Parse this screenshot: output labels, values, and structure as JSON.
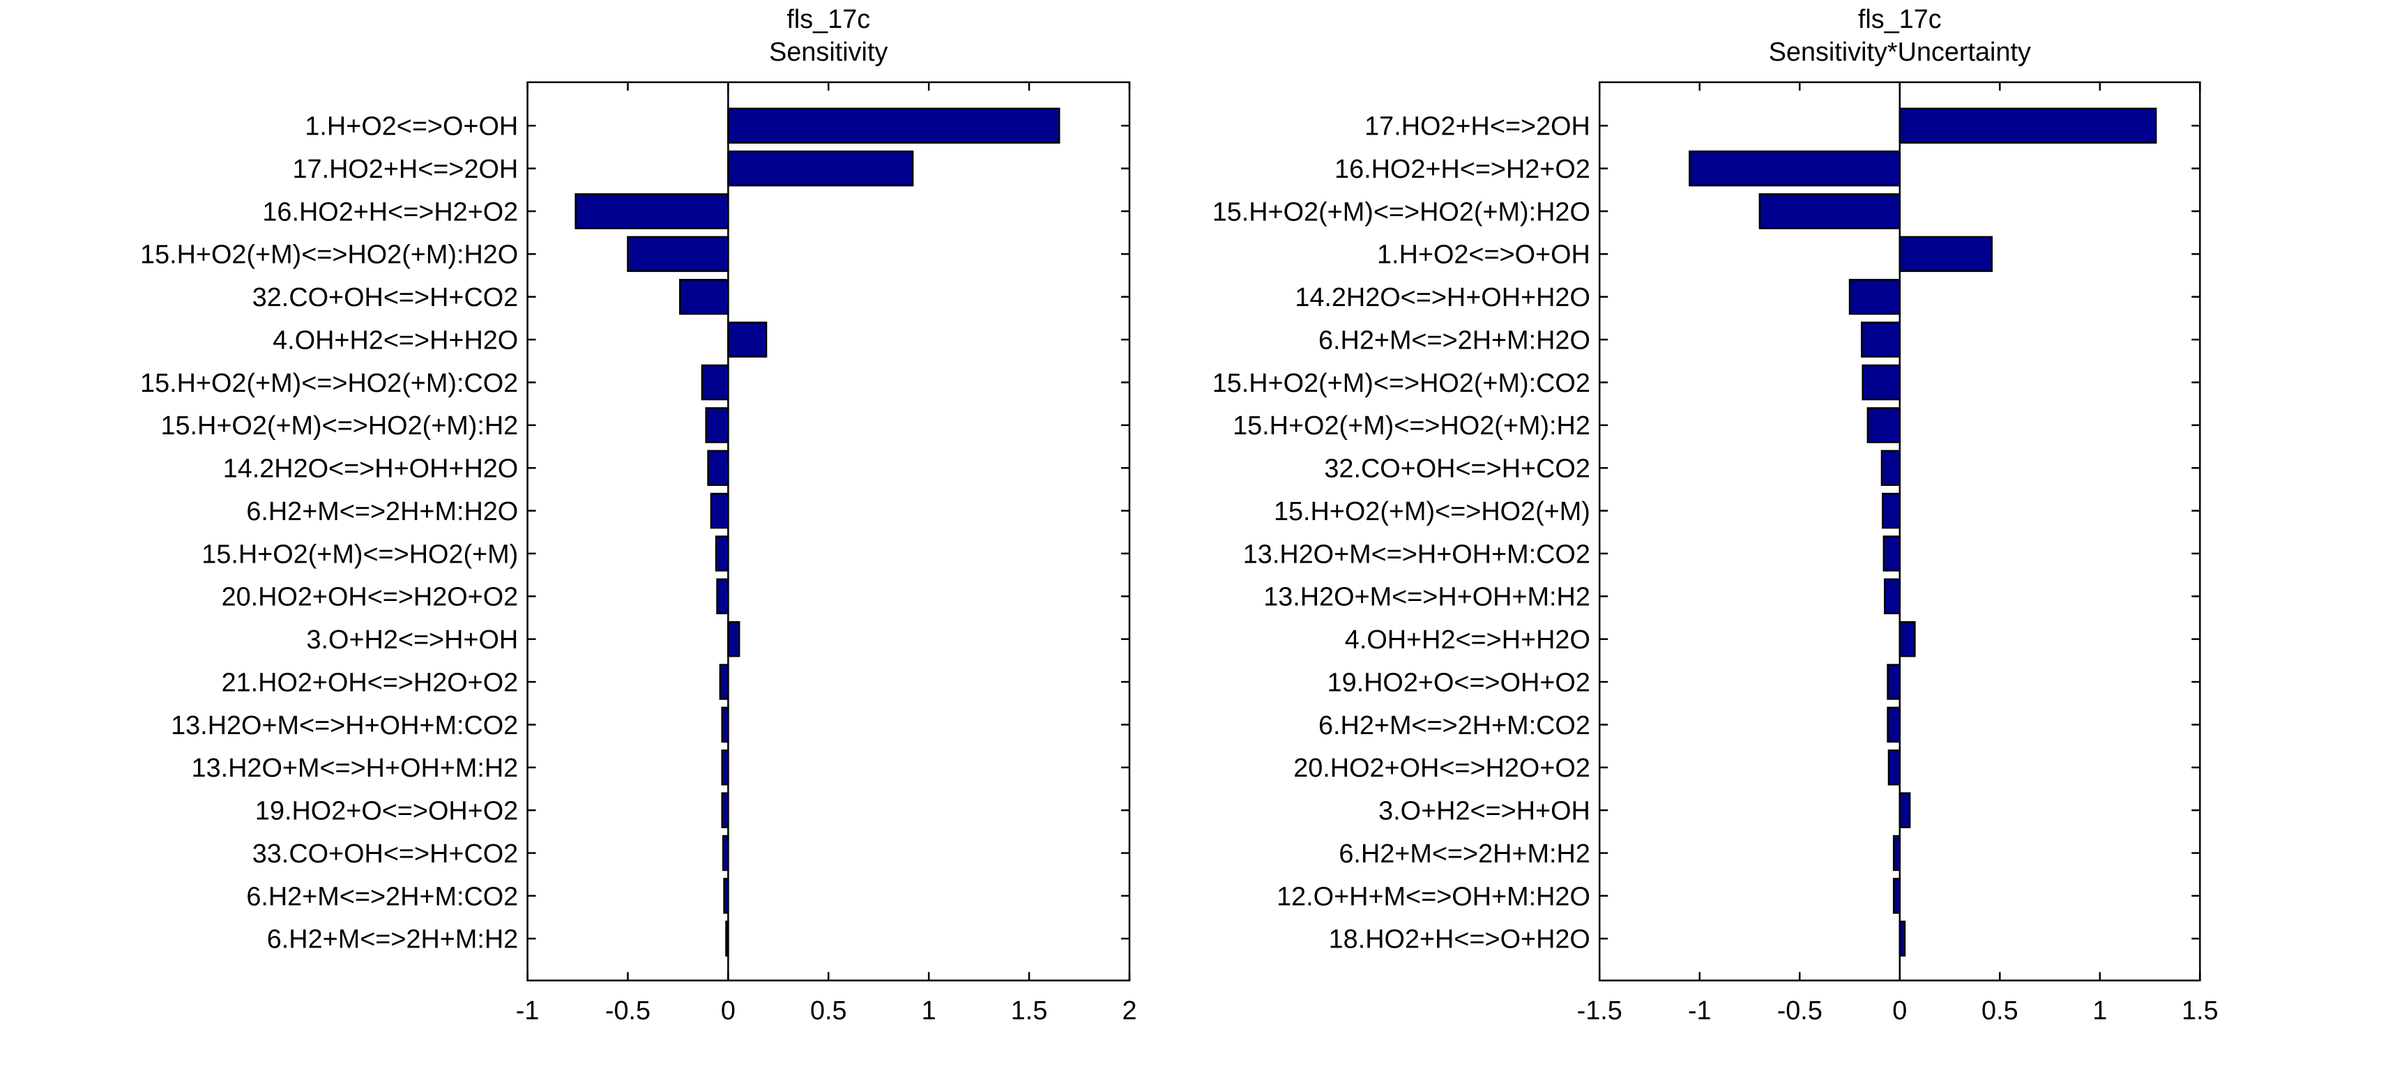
{
  "chart_data": [
    {
      "type": "bar",
      "orientation": "horizontal",
      "title": "fls_17c",
      "subtitle": "Sensitivity",
      "xlabel": "",
      "ylabel": "",
      "xlim": [
        -1,
        2
      ],
      "xticks": [
        -1,
        -0.5,
        0,
        0.5,
        1,
        1.5,
        2
      ],
      "xtick_labels": [
        "-1",
        "-0.5",
        "0",
        "0.5",
        "1",
        "1.5",
        "2"
      ],
      "bar_color": "#00008f",
      "grid": false,
      "categories": [
        "1.H+O2<=>O+OH",
        "17.HO2+H<=>2OH",
        "16.HO2+H<=>H2+O2",
        "15.H+O2(+M)<=>HO2(+M):H2O",
        "32.CO+OH<=>H+CO2",
        "4.OH+H2<=>H+H2O",
        "15.H+O2(+M)<=>HO2(+M):CO2",
        "15.H+O2(+M)<=>HO2(+M):H2",
        "14.2H2O<=>H+OH+H2O",
        "6.H2+M<=>2H+M:H2O",
        "15.H+O2(+M)<=>HO2(+M)",
        "20.HO2+OH<=>H2O+O2",
        "3.O+H2<=>H+OH",
        "21.HO2+OH<=>H2O+O2",
        "13.H2O+M<=>H+OH+M:CO2",
        "13.H2O+M<=>H+OH+M:H2",
        "19.HO2+O<=>OH+O2",
        "33.CO+OH<=>H+CO2",
        "6.H2+M<=>2H+M:CO2",
        "6.H2+M<=>2H+M:H2"
      ],
      "values": [
        1.65,
        0.92,
        -0.76,
        -0.5,
        -0.24,
        0.19,
        -0.13,
        -0.11,
        -0.1,
        -0.085,
        -0.06,
        -0.055,
        0.055,
        -0.04,
        -0.03,
        -0.03,
        -0.03,
        -0.025,
        -0.02,
        -0.01
      ]
    },
    {
      "type": "bar",
      "orientation": "horizontal",
      "title": "fls_17c",
      "subtitle": "Sensitivity*Uncertainty",
      "xlabel": "",
      "ylabel": "",
      "xlim": [
        -1.5,
        1.5
      ],
      "xticks": [
        -1.5,
        -1,
        -0.5,
        0,
        0.5,
        1,
        1.5
      ],
      "xtick_labels": [
        "-1.5",
        "-1",
        "-0.5",
        "0",
        "0.5",
        "1",
        "1.5"
      ],
      "bar_color": "#00008f",
      "grid": false,
      "categories": [
        "17.HO2+H<=>2OH",
        "16.HO2+H<=>H2+O2",
        "15.H+O2(+M)<=>HO2(+M):H2O",
        "1.H+O2<=>O+OH",
        "14.2H2O<=>H+OH+H2O",
        "6.H2+M<=>2H+M:H2O",
        "15.H+O2(+M)<=>HO2(+M):CO2",
        "15.H+O2(+M)<=>HO2(+M):H2",
        "32.CO+OH<=>H+CO2",
        "15.H+O2(+M)<=>HO2(+M)",
        "13.H2O+M<=>H+OH+M:CO2",
        "13.H2O+M<=>H+OH+M:H2",
        "4.OH+H2<=>H+H2O",
        "19.HO2+O<=>OH+O2",
        "6.H2+M<=>2H+M:CO2",
        "20.HO2+OH<=>H2O+O2",
        "3.O+H2<=>H+OH",
        "6.H2+M<=>2H+M:H2",
        "12.O+H+M<=>OH+M:H2O",
        "18.HO2+H<=>O+H2O"
      ],
      "values": [
        1.28,
        -1.05,
        -0.7,
        0.46,
        -0.25,
        -0.19,
        -0.185,
        -0.16,
        -0.09,
        -0.085,
        -0.08,
        -0.075,
        0.075,
        -0.06,
        -0.06,
        -0.055,
        0.05,
        -0.03,
        -0.03,
        0.025
      ]
    }
  ]
}
